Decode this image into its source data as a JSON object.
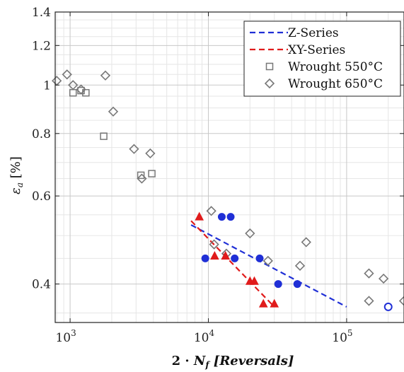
{
  "chart_data": {
    "type": "scatter",
    "xscale": "log",
    "yscale": "log",
    "xlim": [
      780,
      260000
    ],
    "ylim": [
      0.335,
      1.4
    ],
    "grid": true,
    "legend_position": "top-right",
    "xlabel": "2 · N_f [Reversals]",
    "xlabel_parts": {
      "pre": "2 · ",
      "var": "N",
      "sub": "f",
      "post": " [Reversals]"
    },
    "ylabel": "ε_a [%]",
    "ylabel_parts": {
      "var": "ε",
      "sub": "a",
      "post": " [%]"
    },
    "y_ticks": [
      {
        "value": 0.4,
        "label": "0.4"
      },
      {
        "value": 0.6,
        "label": "0.6"
      },
      {
        "value": 0.8,
        "label": "0.8"
      },
      {
        "value": 1.0,
        "label": "1"
      },
      {
        "value": 1.2,
        "label": "1.2"
      },
      {
        "value": 1.4,
        "label": "1.4"
      }
    ],
    "x_ticks": [
      {
        "value": 1000,
        "base": "10",
        "exp": "3"
      },
      {
        "value": 10000,
        "base": "10",
        "exp": "4"
      },
      {
        "value": 100000,
        "base": "10",
        "exp": "5"
      }
    ],
    "series": [
      {
        "name": "Z-Series",
        "kind": "fit-line",
        "color": "#1f2fd6",
        "dash": "dashed",
        "points": [
          [
            7500,
            0.525
          ],
          [
            100000,
            0.36
          ]
        ]
      },
      {
        "name": "XY-Series",
        "kind": "fit-line",
        "color": "#e01b1b",
        "dash": "dashed",
        "points": [
          [
            7500,
            0.535
          ],
          [
            30000,
            0.36
          ]
        ]
      },
      {
        "name": "Wrought 550°C",
        "kind": "marker",
        "marker": "square",
        "color": "#777777",
        "points": [
          [
            1050,
            0.965
          ],
          [
            1200,
            0.975
          ],
          [
            1300,
            0.965
          ],
          [
            1750,
            0.79
          ],
          [
            3250,
            0.66
          ],
          [
            3900,
            0.665
          ]
        ]
      },
      {
        "name": "Wrought 650°C",
        "kind": "marker",
        "marker": "diamond",
        "color": "#777777",
        "points": [
          [
            800,
            1.02
          ],
          [
            950,
            1.05
          ],
          [
            1050,
            1.0
          ],
          [
            1200,
            0.98
          ],
          [
            1800,
            1.045
          ],
          [
            2050,
            0.885
          ],
          [
            2900,
            0.745
          ],
          [
            3300,
            0.65
          ],
          [
            3800,
            0.73
          ],
          [
            10500,
            0.56
          ],
          [
            11000,
            0.48
          ],
          [
            13500,
            0.46
          ],
          [
            20000,
            0.505
          ],
          [
            27000,
            0.445
          ],
          [
            46000,
            0.435
          ],
          [
            51000,
            0.485
          ],
          [
            145000,
            0.42
          ],
          [
            185000,
            0.41
          ],
          [
            145000,
            0.37
          ],
          [
            260000,
            0.37
          ]
        ]
      },
      {
        "name": "Z-Series specimens",
        "kind": "marker",
        "marker": "circle-filled",
        "color": "#1f2fd6",
        "points": [
          [
            9500,
            0.45
          ],
          [
            12500,
            0.545
          ],
          [
            14500,
            0.545
          ],
          [
            15500,
            0.45
          ],
          [
            23500,
            0.45
          ],
          [
            32000,
            0.4
          ],
          [
            44000,
            0.4
          ]
        ]
      },
      {
        "name": "Z-Series runout",
        "kind": "marker",
        "marker": "circle-open",
        "color": "#1f2fd6",
        "points": [
          [
            200000,
            0.36
          ]
        ]
      },
      {
        "name": "XY-Series specimens",
        "kind": "marker",
        "marker": "triangle",
        "color": "#e01b1b",
        "points": [
          [
            8600,
            0.545
          ],
          [
            11100,
            0.455
          ],
          [
            13300,
            0.455
          ],
          [
            20000,
            0.405
          ],
          [
            21500,
            0.405
          ],
          [
            25000,
            0.365
          ],
          [
            30000,
            0.365
          ]
        ]
      }
    ],
    "legend": [
      {
        "label": "Z-Series",
        "symbol": "dash",
        "color": "#1f2fd6"
      },
      {
        "label": "XY-Series",
        "symbol": "dash",
        "color": "#e01b1b"
      },
      {
        "label": "Wrought 550°C",
        "symbol": "square",
        "color": "#777777"
      },
      {
        "label": "Wrought 650°C",
        "symbol": "diamond",
        "color": "#777777"
      }
    ]
  }
}
